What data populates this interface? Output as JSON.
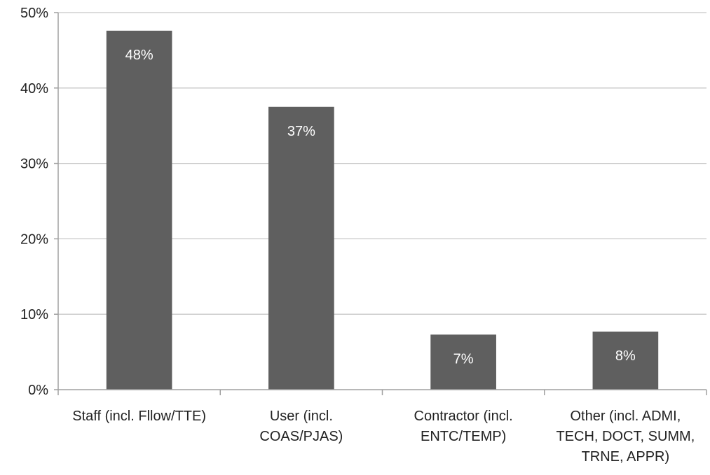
{
  "colors": {
    "bar": "#5f5f5f",
    "grid": "#c8c8c8",
    "axis": "#a0a0a0",
    "data_label_text": "#ffffff"
  },
  "chart_data": {
    "type": "bar",
    "title": "",
    "xlabel": "",
    "ylabel": "",
    "ylim": [
      0,
      50
    ],
    "yticks": [
      0,
      10,
      20,
      30,
      40,
      50
    ],
    "ytick_labels": [
      "0%",
      "10%",
      "20%",
      "30%",
      "40%",
      "50%"
    ],
    "grid": true,
    "legend": "none",
    "categories": [
      [
        "Staff (incl. Fllow/TTE)"
      ],
      [
        "User (incl.",
        "COAS/PJAS)"
      ],
      [
        "Contractor (incl.",
        "ENTC/TEMP)"
      ],
      [
        "Other (incl. ADMI,",
        "TECH, DOCT, SUMM,",
        "TRNE, APPR)"
      ]
    ],
    "values": [
      47.6,
      37.5,
      7.3,
      7.7
    ],
    "data_labels": [
      "48%",
      "37%",
      "7%",
      "8%"
    ]
  }
}
